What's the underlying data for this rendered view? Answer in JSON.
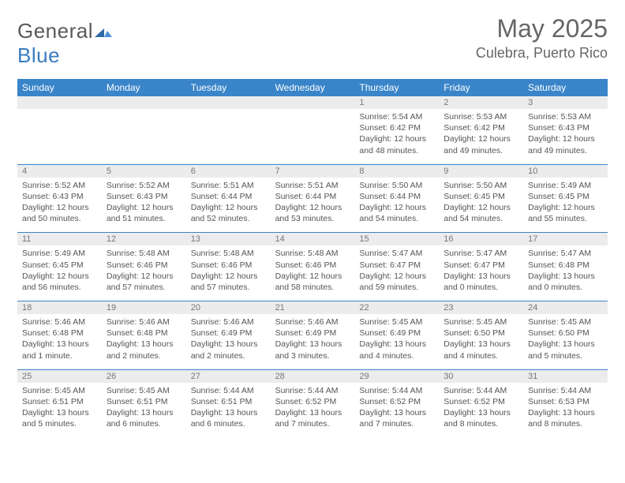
{
  "brand": {
    "text1": "General",
    "text2": "Blue"
  },
  "title": "May 2025",
  "location": "Culebra, Puerto Rico",
  "colors": {
    "header_bg": "#3a85c9",
    "header_text": "#ffffff",
    "daynum_bg": "#ececec",
    "text": "#555555",
    "rule": "#3a85c9",
    "background": "#ffffff"
  },
  "fonts": {
    "title_size_pt": 24,
    "location_size_pt": 14,
    "header_size_pt": 9,
    "cell_size_pt": 8
  },
  "dayHeaders": [
    "Sunday",
    "Monday",
    "Tuesday",
    "Wednesday",
    "Thursday",
    "Friday",
    "Saturday"
  ],
  "weeks": [
    {
      "nums": [
        "",
        "",
        "",
        "",
        "1",
        "2",
        "3"
      ],
      "cells": [
        {},
        {},
        {},
        {},
        {
          "sunrise": "Sunrise: 5:54 AM",
          "sunset": "Sunset: 6:42 PM",
          "day1": "Daylight: 12 hours",
          "day2": "and 48 minutes."
        },
        {
          "sunrise": "Sunrise: 5:53 AM",
          "sunset": "Sunset: 6:42 PM",
          "day1": "Daylight: 12 hours",
          "day2": "and 49 minutes."
        },
        {
          "sunrise": "Sunrise: 5:53 AM",
          "sunset": "Sunset: 6:43 PM",
          "day1": "Daylight: 12 hours",
          "day2": "and 49 minutes."
        }
      ]
    },
    {
      "nums": [
        "4",
        "5",
        "6",
        "7",
        "8",
        "9",
        "10"
      ],
      "cells": [
        {
          "sunrise": "Sunrise: 5:52 AM",
          "sunset": "Sunset: 6:43 PM",
          "day1": "Daylight: 12 hours",
          "day2": "and 50 minutes."
        },
        {
          "sunrise": "Sunrise: 5:52 AM",
          "sunset": "Sunset: 6:43 PM",
          "day1": "Daylight: 12 hours",
          "day2": "and 51 minutes."
        },
        {
          "sunrise": "Sunrise: 5:51 AM",
          "sunset": "Sunset: 6:44 PM",
          "day1": "Daylight: 12 hours",
          "day2": "and 52 minutes."
        },
        {
          "sunrise": "Sunrise: 5:51 AM",
          "sunset": "Sunset: 6:44 PM",
          "day1": "Daylight: 12 hours",
          "day2": "and 53 minutes."
        },
        {
          "sunrise": "Sunrise: 5:50 AM",
          "sunset": "Sunset: 6:44 PM",
          "day1": "Daylight: 12 hours",
          "day2": "and 54 minutes."
        },
        {
          "sunrise": "Sunrise: 5:50 AM",
          "sunset": "Sunset: 6:45 PM",
          "day1": "Daylight: 12 hours",
          "day2": "and 54 minutes."
        },
        {
          "sunrise": "Sunrise: 5:49 AM",
          "sunset": "Sunset: 6:45 PM",
          "day1": "Daylight: 12 hours",
          "day2": "and 55 minutes."
        }
      ]
    },
    {
      "nums": [
        "11",
        "12",
        "13",
        "14",
        "15",
        "16",
        "17"
      ],
      "cells": [
        {
          "sunrise": "Sunrise: 5:49 AM",
          "sunset": "Sunset: 6:45 PM",
          "day1": "Daylight: 12 hours",
          "day2": "and 56 minutes."
        },
        {
          "sunrise": "Sunrise: 5:48 AM",
          "sunset": "Sunset: 6:46 PM",
          "day1": "Daylight: 12 hours",
          "day2": "and 57 minutes."
        },
        {
          "sunrise": "Sunrise: 5:48 AM",
          "sunset": "Sunset: 6:46 PM",
          "day1": "Daylight: 12 hours",
          "day2": "and 57 minutes."
        },
        {
          "sunrise": "Sunrise: 5:48 AM",
          "sunset": "Sunset: 6:46 PM",
          "day1": "Daylight: 12 hours",
          "day2": "and 58 minutes."
        },
        {
          "sunrise": "Sunrise: 5:47 AM",
          "sunset": "Sunset: 6:47 PM",
          "day1": "Daylight: 12 hours",
          "day2": "and 59 minutes."
        },
        {
          "sunrise": "Sunrise: 5:47 AM",
          "sunset": "Sunset: 6:47 PM",
          "day1": "Daylight: 13 hours",
          "day2": "and 0 minutes."
        },
        {
          "sunrise": "Sunrise: 5:47 AM",
          "sunset": "Sunset: 6:48 PM",
          "day1": "Daylight: 13 hours",
          "day2": "and 0 minutes."
        }
      ]
    },
    {
      "nums": [
        "18",
        "19",
        "20",
        "21",
        "22",
        "23",
        "24"
      ],
      "cells": [
        {
          "sunrise": "Sunrise: 5:46 AM",
          "sunset": "Sunset: 6:48 PM",
          "day1": "Daylight: 13 hours",
          "day2": "and 1 minute."
        },
        {
          "sunrise": "Sunrise: 5:46 AM",
          "sunset": "Sunset: 6:48 PM",
          "day1": "Daylight: 13 hours",
          "day2": "and 2 minutes."
        },
        {
          "sunrise": "Sunrise: 5:46 AM",
          "sunset": "Sunset: 6:49 PM",
          "day1": "Daylight: 13 hours",
          "day2": "and 2 minutes."
        },
        {
          "sunrise": "Sunrise: 5:46 AM",
          "sunset": "Sunset: 6:49 PM",
          "day1": "Daylight: 13 hours",
          "day2": "and 3 minutes."
        },
        {
          "sunrise": "Sunrise: 5:45 AM",
          "sunset": "Sunset: 6:49 PM",
          "day1": "Daylight: 13 hours",
          "day2": "and 4 minutes."
        },
        {
          "sunrise": "Sunrise: 5:45 AM",
          "sunset": "Sunset: 6:50 PM",
          "day1": "Daylight: 13 hours",
          "day2": "and 4 minutes."
        },
        {
          "sunrise": "Sunrise: 5:45 AM",
          "sunset": "Sunset: 6:50 PM",
          "day1": "Daylight: 13 hours",
          "day2": "and 5 minutes."
        }
      ]
    },
    {
      "nums": [
        "25",
        "26",
        "27",
        "28",
        "29",
        "30",
        "31"
      ],
      "cells": [
        {
          "sunrise": "Sunrise: 5:45 AM",
          "sunset": "Sunset: 6:51 PM",
          "day1": "Daylight: 13 hours",
          "day2": "and 5 minutes."
        },
        {
          "sunrise": "Sunrise: 5:45 AM",
          "sunset": "Sunset: 6:51 PM",
          "day1": "Daylight: 13 hours",
          "day2": "and 6 minutes."
        },
        {
          "sunrise": "Sunrise: 5:44 AM",
          "sunset": "Sunset: 6:51 PM",
          "day1": "Daylight: 13 hours",
          "day2": "and 6 minutes."
        },
        {
          "sunrise": "Sunrise: 5:44 AM",
          "sunset": "Sunset: 6:52 PM",
          "day1": "Daylight: 13 hours",
          "day2": "and 7 minutes."
        },
        {
          "sunrise": "Sunrise: 5:44 AM",
          "sunset": "Sunset: 6:52 PM",
          "day1": "Daylight: 13 hours",
          "day2": "and 7 minutes."
        },
        {
          "sunrise": "Sunrise: 5:44 AM",
          "sunset": "Sunset: 6:52 PM",
          "day1": "Daylight: 13 hours",
          "day2": "and 8 minutes."
        },
        {
          "sunrise": "Sunrise: 5:44 AM",
          "sunset": "Sunset: 6:53 PM",
          "day1": "Daylight: 13 hours",
          "day2": "and 8 minutes."
        }
      ]
    }
  ]
}
